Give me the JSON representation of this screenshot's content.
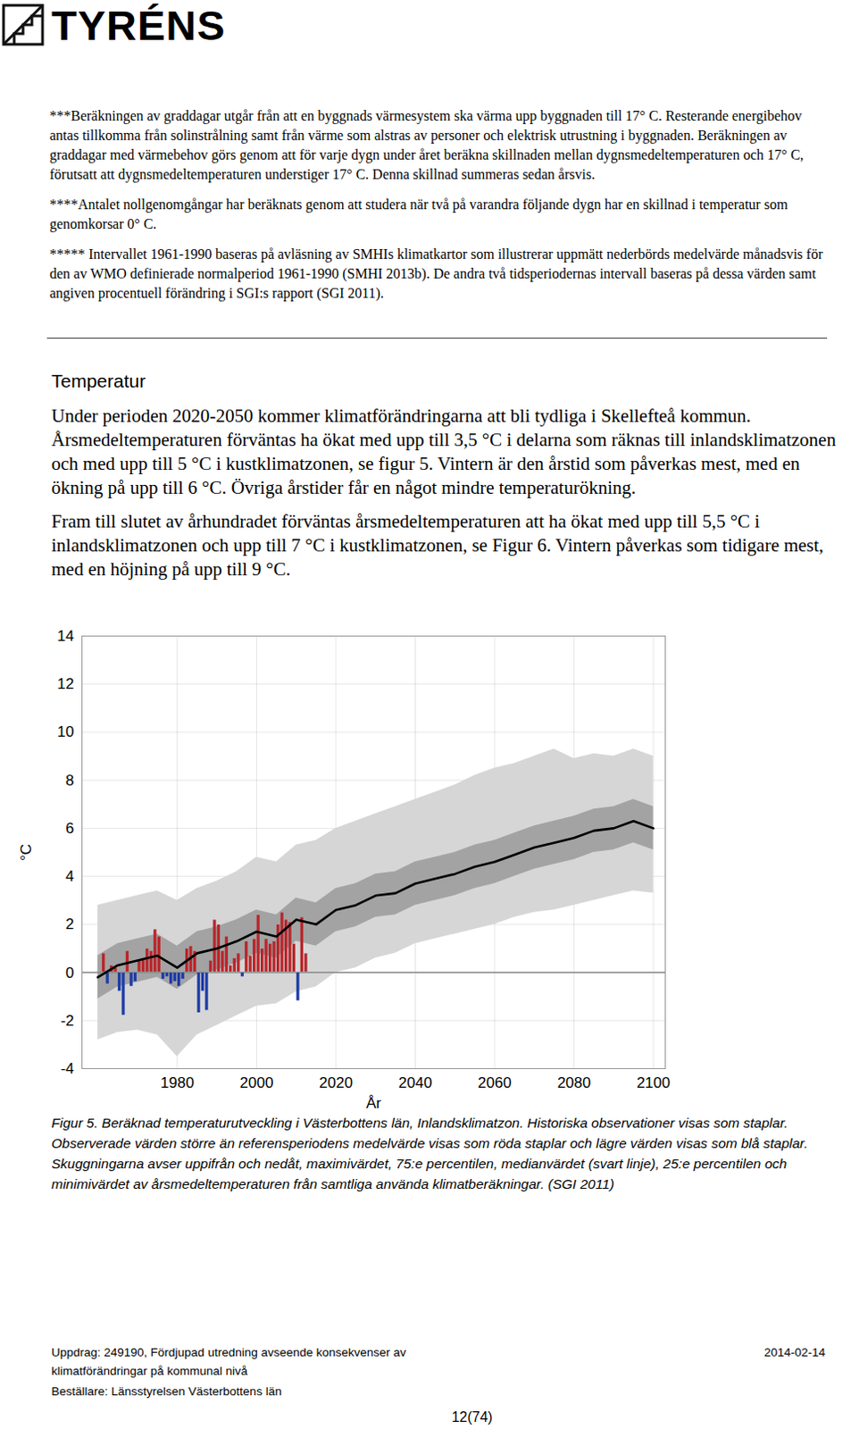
{
  "header": {
    "logo": "TYRÉNS"
  },
  "footnotes": [
    "***Beräkningen av graddagar utgår från att en byggnads värmesystem ska värma upp byggnaden till 17° C. Resterande energibehov antas tillkomma från solinstrålning samt från värme som alstras av personer och elektrisk utrustning i byggnaden. Beräkningen av graddagar med värmebehov görs genom att för varje dygn under året beräkna skillnaden mellan dygnsmedeltemperaturen och 17° C, förutsatt att dygnsmedeltemperaturen understiger 17° C. Denna skillnad summeras sedan årsvis.",
    "****Antalet nollgenomgångar har beräknats genom att studera när två på varandra följande dygn har en skillnad i temperatur som genomkorsar 0° C.",
    "***** Intervallet 1961-1990 baseras på avläsning av SMHIs klimatkartor som illustrerar uppmätt nederbörds medelvärde månadsvis för den av WMO definierade normalperiod 1961-1990 (SMHI 2013b). De andra två tidsperiodernas intervall baseras på dessa värden samt angiven procentuell förändring i SGI:s rapport (SGI 2011)."
  ],
  "section": {
    "title": "Temperatur",
    "paragraphs": [
      "Under perioden 2020-2050 kommer klimatförändringarna att bli tydliga i Skellefteå kommun. Årsmedeltemperaturen förväntas ha ökat med upp till 3,5  °C i delarna som räknas till inlandsklimatzonen och med upp till 5 °C i kustklimatzonen, se figur 5. Vintern är den årstid som påverkas mest, med en ökning på upp till 6 °C. Övriga årstider får en något mindre temperaturökning.",
      "Fram till slutet av århundradet förväntas årsmedeltemperaturen att ha ökat med upp till 5,5 °C i inlandsklimatzonen och upp till 7 °C i kustklimatzonen, se Figur 6. Vintern påverkas som tidigare mest, med en höjning på upp till 9  °C."
    ]
  },
  "chart_data": {
    "type": "line",
    "xlabel": "År",
    "ylabel": "°C",
    "xlim": [
      1956,
      2103
    ],
    "xticks": [
      1980,
      2000,
      2020,
      2040,
      2060,
      2080,
      2100
    ],
    "ylim": [
      -4,
      14
    ],
    "yticks": [
      -4,
      -2,
      0,
      2,
      4,
      6,
      8,
      10,
      12,
      14
    ],
    "grid": true,
    "baseline": 0,
    "model": {
      "x": [
        1960,
        1965,
        1970,
        1975,
        1980,
        1985,
        1990,
        1995,
        2000,
        2005,
        2010,
        2015,
        2020,
        2025,
        2030,
        2035,
        2040,
        2045,
        2050,
        2055,
        2060,
        2065,
        2070,
        2075,
        2080,
        2085,
        2090,
        2095,
        2100
      ],
      "min": [
        -2.8,
        -2.5,
        -2.4,
        -2.6,
        -3.5,
        -2.6,
        -2.2,
        -1.8,
        -1.4,
        -1.3,
        -0.8,
        -0.6,
        0.0,
        0.2,
        0.6,
        0.8,
        1.2,
        1.4,
        1.6,
        1.8,
        2.0,
        2.3,
        2.5,
        2.6,
        2.8,
        3.0,
        3.2,
        3.4,
        3.3
      ],
      "p25": [
        -1.1,
        -0.6,
        -0.4,
        -0.2,
        -0.7,
        -0.1,
        0.1,
        0.4,
        0.8,
        0.6,
        1.3,
        1.1,
        1.7,
        1.9,
        2.3,
        2.4,
        2.8,
        3.0,
        3.2,
        3.5,
        3.7,
        4.0,
        4.3,
        4.5,
        4.7,
        5.0,
        5.1,
        5.4,
        5.1
      ],
      "median": [
        -0.2,
        0.3,
        0.5,
        0.7,
        0.2,
        0.8,
        1.0,
        1.3,
        1.7,
        1.5,
        2.2,
        2.0,
        2.6,
        2.8,
        3.2,
        3.3,
        3.7,
        3.9,
        4.1,
        4.4,
        4.6,
        4.9,
        5.2,
        5.4,
        5.6,
        5.9,
        6.0,
        6.3,
        6.0
      ],
      "p75": [
        0.7,
        1.2,
        1.4,
        1.6,
        1.1,
        1.7,
        1.9,
        2.2,
        2.6,
        2.4,
        3.1,
        2.9,
        3.5,
        3.7,
        4.1,
        4.2,
        4.6,
        4.8,
        5.0,
        5.3,
        5.5,
        5.8,
        6.1,
        6.3,
        6.5,
        6.8,
        6.9,
        7.2,
        6.9
      ],
      "max": [
        2.8,
        3.0,
        3.2,
        3.4,
        3.0,
        3.5,
        3.8,
        4.2,
        4.8,
        4.6,
        5.3,
        5.5,
        6.0,
        6.3,
        6.6,
        6.9,
        7.2,
        7.5,
        7.8,
        8.2,
        8.5,
        8.7,
        9.0,
        9.3,
        8.9,
        9.1,
        9.0,
        9.3,
        9.0
      ],
      "color": "#000000"
    },
    "observed": {
      "type": "bar",
      "x": [
        1961,
        1962,
        1963,
        1964,
        1965,
        1966,
        1967,
        1968,
        1969,
        1970,
        1971,
        1972,
        1973,
        1974,
        1975,
        1976,
        1977,
        1978,
        1979,
        1980,
        1981,
        1982,
        1983,
        1984,
        1985,
        1986,
        1987,
        1988,
        1989,
        1990,
        1991,
        1992,
        1993,
        1994,
        1995,
        1996,
        1997,
        1998,
        1999,
        2000,
        2001,
        2002,
        2003,
        2004,
        2005,
        2006,
        2007,
        2008,
        2009,
        2010,
        2011,
        2012
      ],
      "values": [
        0.8,
        -0.5,
        0.3,
        0.2,
        -0.8,
        -1.8,
        0.9,
        -0.6,
        -0.4,
        0.5,
        0.6,
        1.0,
        0.9,
        1.8,
        1.5,
        -0.3,
        -0.2,
        -0.5,
        -0.4,
        -0.6,
        -0.3,
        1.0,
        1.1,
        0.9,
        -1.7,
        -0.8,
        -1.6,
        0.5,
        2.2,
        2.0,
        0.9,
        1.5,
        0.3,
        0.6,
        0.8,
        -0.2,
        1.3,
        0.7,
        1.4,
        2.4,
        1.0,
        1.4,
        1.2,
        1.3,
        2.0,
        2.5,
        2.2,
        2.1,
        1.2,
        -1.2,
        2.3,
        0.8
      ],
      "colors": [
        "#b8262b",
        "#1c3aa6",
        "#b8262b",
        "#b8262b",
        "#1c3aa6",
        "#1c3aa6",
        "#b8262b",
        "#1c3aa6",
        "#1c3aa6",
        "#b8262b",
        "#b8262b",
        "#b8262b",
        "#b8262b",
        "#b8262b",
        "#b8262b",
        "#1c3aa6",
        "#1c3aa6",
        "#1c3aa6",
        "#1c3aa6",
        "#1c3aa6",
        "#1c3aa6",
        "#b8262b",
        "#b8262b",
        "#b8262b",
        "#1c3aa6",
        "#1c3aa6",
        "#1c3aa6",
        "#b8262b",
        "#b8262b",
        "#b8262b",
        "#b8262b",
        "#b8262b",
        "#b8262b",
        "#b8262b",
        "#b8262b",
        "#1c3aa6",
        "#b8262b",
        "#b8262b",
        "#b8262b",
        "#b8262b",
        "#b8262b",
        "#b8262b",
        "#b8262b",
        "#b8262b",
        "#b8262b",
        "#b8262b",
        "#b8262b",
        "#b8262b",
        "#b8262b",
        "#1c3aa6",
        "#b8262b",
        "#b8262b"
      ]
    }
  },
  "caption": "Figur 5. Beräknad temperaturutveckling i Västerbottens län, Inlandsklimatzon. Historiska observationer visas som staplar. Observerade värden större än referensperiodens medelvärde visas som röda staplar och lägre värden visas som blå staplar. Skuggningarna avser uppifrån och nedåt, maximivärdet, 75:e percentilen, medianvärdet (svart linje), 25:e percentilen och minimivärdet av årsmedeltemperaturen från samtliga använda klimatberäkningar. (SGI 2011)",
  "footer": {
    "assignment": [
      "Uppdrag: 249190, Fördjupad utredning avseende konsekvenser av",
      "klimatförändringar på kommunal nivå"
    ],
    "client": "Beställare: Länsstyrelsen Västerbottens län",
    "date": "2014-02-14",
    "page": "12(74)"
  }
}
